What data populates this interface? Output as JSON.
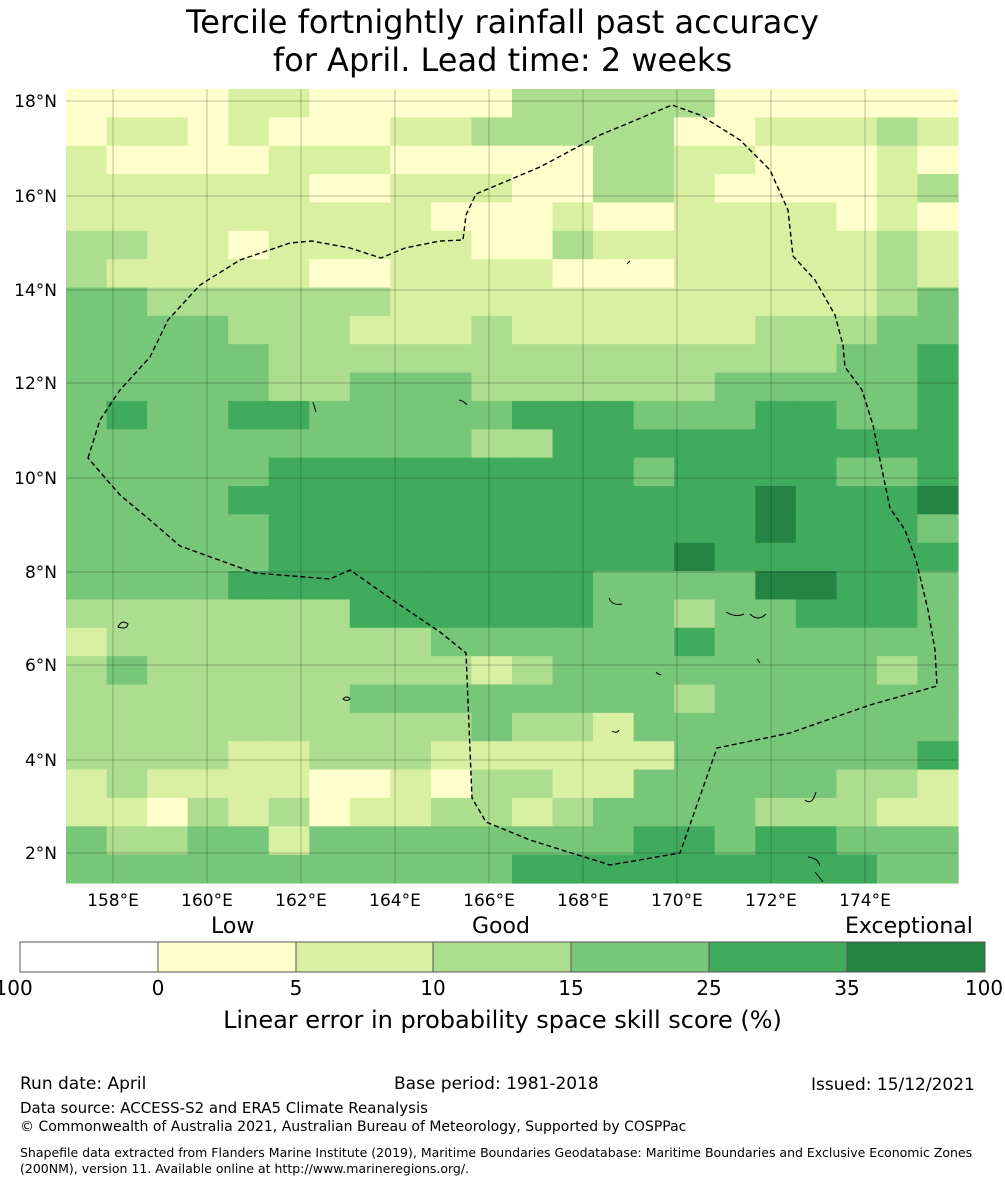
{
  "title": {
    "line1": "Tercile fortnightly rainfall past accuracy",
    "line2": "for April. Lead time: 2 weeks"
  },
  "map": {
    "lon_labels": [
      "158°E",
      "160°E",
      "162°E",
      "164°E",
      "166°E",
      "168°E",
      "170°E",
      "172°E",
      "174°E"
    ],
    "lat_labels": [
      "18°N",
      "16°N",
      "14°N",
      "12°N",
      "10°N",
      "8°N",
      "6°N",
      "4°N",
      "2°N"
    ],
    "grid": [
      "1111221111133333111111",
      "1221211122333331122232",
      "2111122211111332211121",
      "2222221122211332111123",
      "2222222221112112222121",
      "3322122222113222222232",
      "3222221122221112222232",
      "4433333322222222222234",
      "4444333222322222233344",
      "4444433333333333333445",
      "4444433444333333444445",
      "4544554444455544455445",
      "4444444444335555555555",
      "4444455555555545555445",
      "4444555555555555565556",
      "4444455555555555565554",
      "4444455555555556555555",
      "4444555555555444466554",
      "3333333555555443445554",
      "2333333334444445444444",
      "3433333333234444444434",
      "3333333444444443444444",
      "3333333333433244444444",
      "3333223332222224444445",
      "2322221121332244444332",
      "2213231223323444433322",
      "4334424444444455455444",
      "4444444444455555555544"
    ],
    "color_scale": {
      "1": "#ffffcc",
      "2": "#d9f0a3",
      "3": "#addd8e",
      "4": "#78c679",
      "5": "#41ab5d",
      "6": "#238443"
    }
  },
  "colorbar": {
    "category_labels": [
      "Low",
      "Good",
      "Exceptional"
    ],
    "colors": [
      "#ffffff",
      "#ffffcc",
      "#d9f0a3",
      "#addd8e",
      "#78c679",
      "#41ab5d",
      "#238443"
    ],
    "ticks": [
      "-100",
      "0",
      "5",
      "10",
      "15",
      "25",
      "35",
      "100"
    ],
    "axis_label": "Linear error in probability space skill score (%)"
  },
  "footer": {
    "run_date": "Run date: April",
    "base_period": "Base period: 1981-2018",
    "issued": "Issued: 15/12/2021",
    "data_source": "Data source: ACCESS-S2 and ERA5 Climate Reanalysis",
    "copyright": "© Commonwealth of Australia 2021, Australian Bureau of Meteorology, Supported by COSPPac",
    "shapefile_note": "Shapefile data extracted from Flanders Marine Institute (2019), Maritime Boundaries Geodatabase: Maritime Boundaries and Exclusive Economic Zones (200NM), version 11. Available online at http://www.marineregions.org/."
  }
}
